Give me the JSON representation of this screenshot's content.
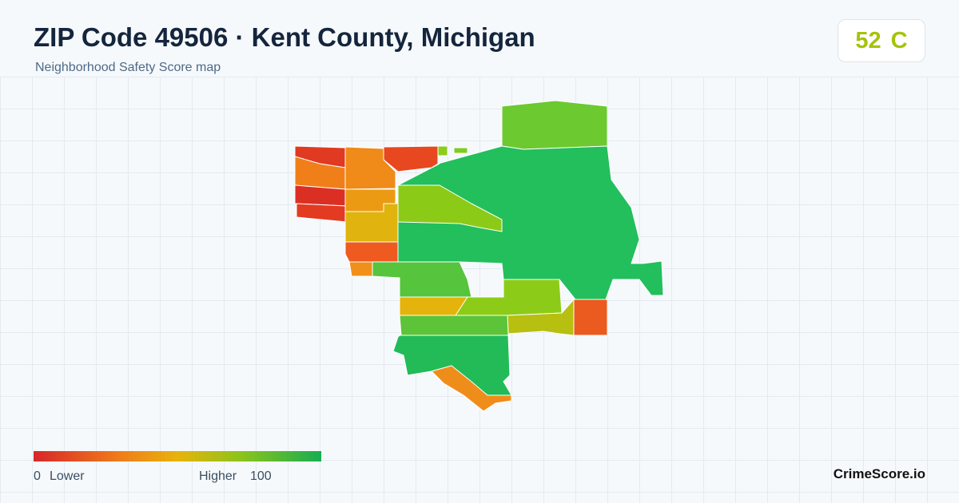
{
  "header": {
    "title": "ZIP Code 49506 · Kent County, Michigan",
    "subtitle": "Neighborhood Safety Score map"
  },
  "score": {
    "value": "52",
    "grade": "C"
  },
  "legend": {
    "min": "0",
    "min_label": "Lower",
    "max_label": "Higher",
    "max": "100"
  },
  "brand": "CrimeScore.io"
}
